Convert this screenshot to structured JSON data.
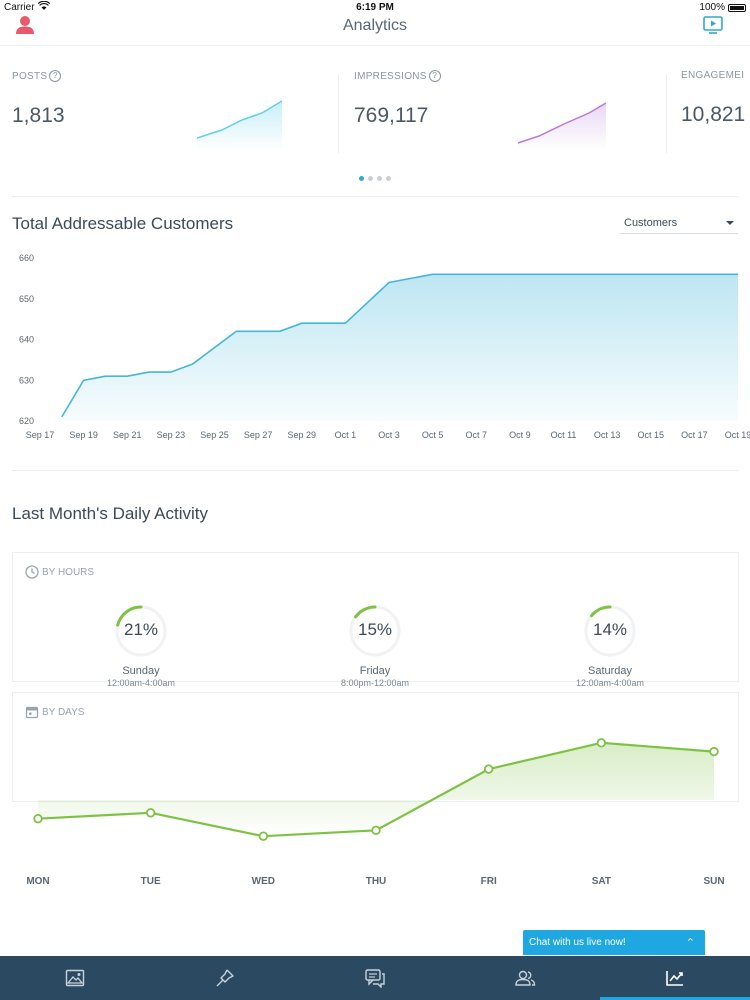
{
  "status_bar": {
    "carrier": "Carrier",
    "time": "6:19 PM",
    "battery": "100%"
  },
  "nav": {
    "title": "Analytics"
  },
  "metrics": [
    {
      "label": "POSTS",
      "value": "1,813",
      "spark_color": "#5fd0e8"
    },
    {
      "label": "IMPRESSIONS",
      "value": "769,117",
      "spark_color": "#b77ad9"
    },
    {
      "label": "ENGAGEMEI",
      "value": "10,821"
    }
  ],
  "carousel": {
    "pages": 4,
    "active_page": 1
  },
  "customers": {
    "title": "Total Addressable Customers",
    "select_value": "Customers"
  },
  "activity": {
    "title": "Last Month's Daily Activity",
    "by_hours_label": "BY HOURS",
    "by_days_label": "BY DAYS",
    "hours": [
      {
        "percent": "21%",
        "value": 21,
        "day": "Sunday",
        "range": "12:00am-4:00am"
      },
      {
        "percent": "15%",
        "value": 15,
        "day": "Friday",
        "range": "8:00pm-12:00am"
      },
      {
        "percent": "14%",
        "value": 14,
        "day": "Saturday",
        "range": "12:00am-4:00am"
      }
    ]
  },
  "chat": {
    "label": "Chat with us live now!"
  },
  "tabs": [
    {
      "icon": "image-icon"
    },
    {
      "icon": "pin-icon"
    },
    {
      "icon": "chat-bubbles-icon"
    },
    {
      "icon": "people-icon"
    },
    {
      "icon": "analytics-icon",
      "active": true
    }
  ],
  "chart_data": [
    {
      "type": "area",
      "title": "Total Addressable Customers",
      "x_tick_labels": [
        "Sep 17",
        "Sep 19",
        "Sep 21",
        "Sep 23",
        "Sep 25",
        "Sep 27",
        "Sep 29",
        "Oct 1",
        "Oct 3",
        "Oct 5",
        "Oct 7",
        "Oct 9",
        "Oct 11",
        "Oct 13",
        "Oct 15",
        "Oct 17",
        "Oct 19"
      ],
      "y_ticks": [
        620,
        630,
        640,
        650,
        660
      ],
      "ylim": [
        620,
        660
      ],
      "x": [
        "Sep 18",
        "Sep 19",
        "Sep 20",
        "Sep 21",
        "Sep 22",
        "Sep 23",
        "Sep 24",
        "Sep 25",
        "Sep 26",
        "Sep 27",
        "Sep 28",
        "Sep 29",
        "Sep 30",
        "Oct 1",
        "Oct 2",
        "Oct 3",
        "Oct 4",
        "Oct 5",
        "Oct 19"
      ],
      "values": [
        621,
        630,
        631,
        631,
        632,
        632,
        634,
        638,
        642,
        642,
        642,
        644,
        644,
        644,
        649,
        654,
        655,
        656,
        656
      ],
      "color": "#43b7da",
      "grid": false
    },
    {
      "type": "area",
      "title": "BY DAYS",
      "categories": [
        "MON",
        "TUE",
        "WED",
        "THU",
        "FRI",
        "SAT",
        "SUN"
      ],
      "values": [
        9.0,
        10.0,
        6.0,
        7.0,
        17.5,
        22.0,
        20.5
      ],
      "color": "#7dc242",
      "grid": false
    }
  ]
}
